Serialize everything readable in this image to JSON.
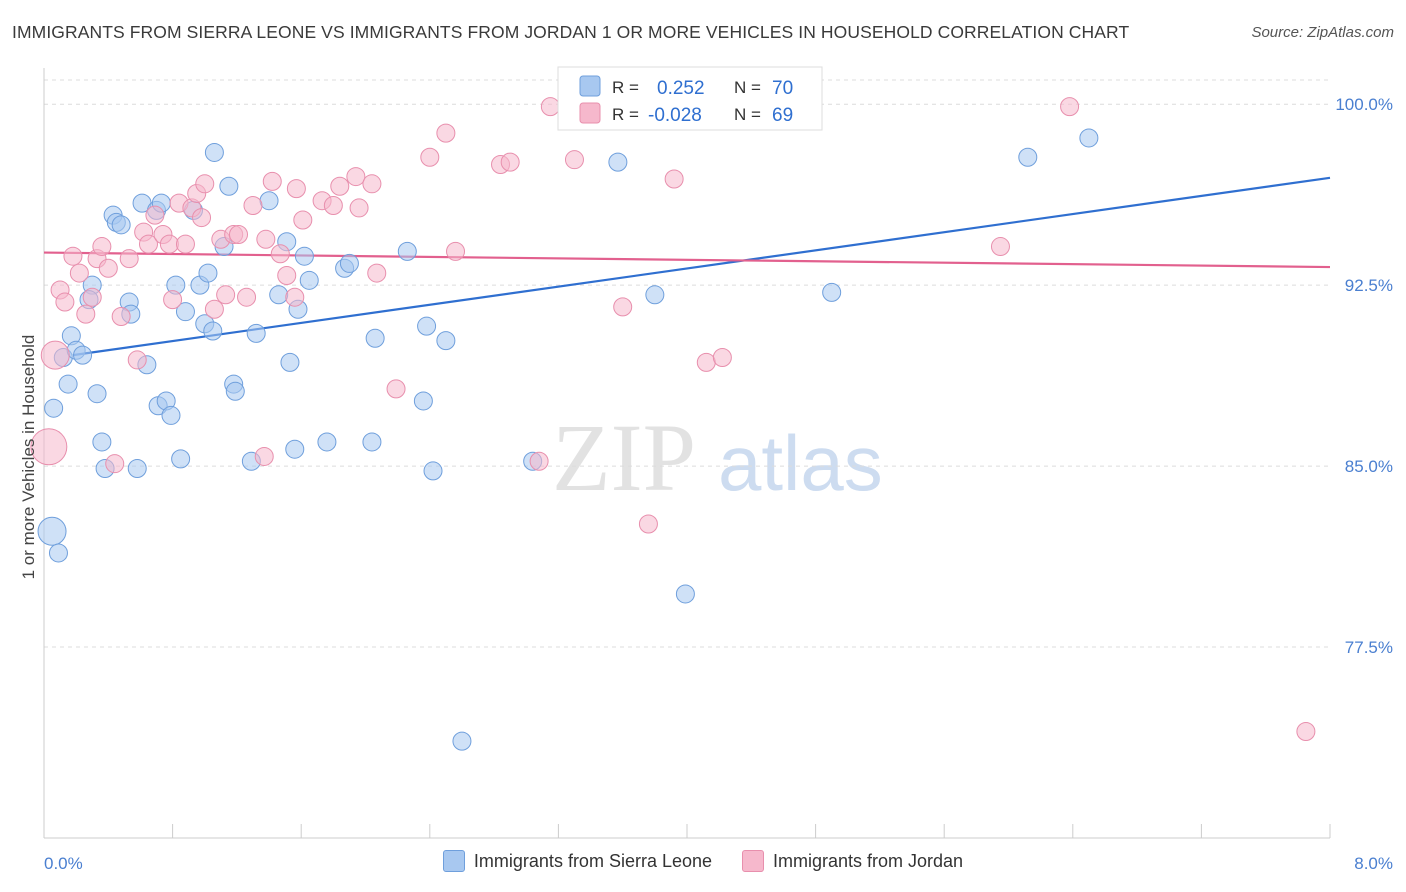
{
  "header": {
    "title": "IMMIGRANTS FROM SIERRA LEONE VS IMMIGRANTS FROM JORDAN 1 OR MORE VEHICLES IN HOUSEHOLD CORRELATION CHART",
    "source": "Source: ZipAtlas.com"
  },
  "watermark": {
    "zip": "ZIP",
    "atlas": "atlas"
  },
  "colors": {
    "blue": "#a8c8f0",
    "blue_stroke": "#6f9fdc",
    "blue_line": "#2f6fd0",
    "pink": "#f6b8cc",
    "pink_stroke": "#e88fad",
    "pink_line": "#e2608e",
    "tick": "#4a7fd0"
  },
  "chart_data": {
    "type": "scatter",
    "title": "IMMIGRANTS FROM SIERRA LEONE VS IMMIGRANTS FROM JORDAN 1 OR MORE VEHICLES IN HOUSEHOLD CORRELATION CHART",
    "xlabel": "",
    "ylabel": "1 or more Vehicles in Household",
    "xlim": [
      0.0,
      8.0
    ],
    "ylim": [
      70.0,
      101.5
    ],
    "x_tick_labels": [
      "0.0%",
      "8.0%"
    ],
    "y_ticks": [
      77.5,
      85.0,
      92.5,
      100.0
    ],
    "y_tick_labels": [
      "77.5%",
      "85.0%",
      "92.5%",
      "100.0%"
    ],
    "grid": true,
    "legend_position": "top-center",
    "stats": [
      {
        "r_label": "R = ",
        "r": " 0.252",
        "n_label": "N = ",
        "n": "70"
      },
      {
        "r_label": "R = ",
        "r": "-0.028",
        "n_label": "N = ",
        "n": "69"
      }
    ],
    "series": [
      {
        "name": "Immigrants from Sierra Leone",
        "color": "#a8c8f0",
        "trend": [
          [
            0.18,
            89.6
          ],
          [
            8.0,
            96.95
          ]
        ],
        "points": [
          [
            0.05,
            82.3,
            2
          ],
          [
            0.09,
            81.4,
            1
          ],
          [
            0.06,
            87.4,
            1
          ],
          [
            0.15,
            88.4,
            1
          ],
          [
            0.17,
            90.4,
            1
          ],
          [
            0.12,
            89.5,
            1
          ],
          [
            0.2,
            89.8,
            1
          ],
          [
            0.24,
            89.6,
            1
          ],
          [
            0.3,
            92.5,
            1
          ],
          [
            0.33,
            88.0,
            1
          ],
          [
            0.28,
            91.9,
            1
          ],
          [
            0.36,
            86.0,
            1
          ],
          [
            0.38,
            84.9,
            1
          ],
          [
            0.53,
            91.8,
            1
          ],
          [
            0.54,
            91.3,
            1
          ],
          [
            0.43,
            95.4,
            1
          ],
          [
            0.45,
            95.1,
            1
          ],
          [
            0.48,
            95.0,
            1
          ],
          [
            0.58,
            84.9,
            1
          ],
          [
            0.61,
            95.9,
            1
          ],
          [
            0.64,
            89.2,
            1
          ],
          [
            0.7,
            95.6,
            1
          ],
          [
            0.73,
            95.9,
            1
          ],
          [
            0.71,
            87.5,
            1
          ],
          [
            0.76,
            87.7,
            1
          ],
          [
            0.79,
            87.1,
            1
          ],
          [
            0.82,
            92.5,
            1
          ],
          [
            0.85,
            85.3,
            1
          ],
          [
            0.88,
            91.4,
            1
          ],
          [
            0.93,
            95.6,
            1
          ],
          [
            0.97,
            92.5,
            1
          ],
          [
            1.0,
            90.9,
            1
          ],
          [
            1.02,
            93.0,
            1
          ],
          [
            1.05,
            90.6,
            1
          ],
          [
            1.06,
            98.0,
            1
          ],
          [
            1.12,
            94.1,
            1
          ],
          [
            1.15,
            96.6,
            1
          ],
          [
            1.18,
            88.4,
            1
          ],
          [
            1.19,
            88.1,
            1
          ],
          [
            1.29,
            85.2,
            1
          ],
          [
            1.32,
            90.5,
            1
          ],
          [
            1.4,
            96.0,
            1
          ],
          [
            1.46,
            92.1,
            1
          ],
          [
            1.51,
            94.3,
            1
          ],
          [
            1.53,
            89.3,
            1
          ],
          [
            1.56,
            85.7,
            1
          ],
          [
            1.58,
            91.5,
            1
          ],
          [
            1.62,
            93.7,
            1
          ],
          [
            1.65,
            92.7,
            1
          ],
          [
            1.76,
            86.0,
            1
          ],
          [
            1.87,
            93.2,
            1
          ],
          [
            1.9,
            93.4,
            1
          ],
          [
            2.04,
            86.0,
            1
          ],
          [
            2.06,
            90.3,
            1
          ],
          [
            2.26,
            93.9,
            1
          ],
          [
            2.36,
            87.7,
            1
          ],
          [
            2.38,
            90.8,
            1
          ],
          [
            2.42,
            84.8,
            1
          ],
          [
            2.6,
            73.6,
            1
          ],
          [
            2.5,
            90.2,
            1
          ],
          [
            3.04,
            85.2,
            1
          ],
          [
            3.45,
            99.9,
            1
          ],
          [
            3.53,
            99.9,
            1
          ],
          [
            3.57,
            97.6,
            1
          ],
          [
            3.8,
            92.1,
            1
          ],
          [
            3.99,
            79.7,
            1
          ],
          [
            4.9,
            92.2,
            1
          ],
          [
            6.12,
            97.8,
            1
          ],
          [
            6.5,
            98.6,
            1
          ],
          [
            3.35,
            99.9,
            1
          ]
        ]
      },
      {
        "name": "Immigrants from Jordan",
        "color": "#f6b8cc",
        "trend": [
          [
            0.0,
            93.85
          ],
          [
            8.0,
            93.25
          ]
        ],
        "points": [
          [
            0.03,
            85.8,
            3
          ],
          [
            0.07,
            89.6,
            2
          ],
          [
            0.1,
            92.3,
            1
          ],
          [
            0.13,
            91.8,
            1
          ],
          [
            0.18,
            93.7,
            1
          ],
          [
            0.22,
            93.0,
            1
          ],
          [
            0.26,
            91.3,
            1
          ],
          [
            0.3,
            92.0,
            1
          ],
          [
            0.33,
            93.6,
            1
          ],
          [
            0.36,
            94.1,
            1
          ],
          [
            0.4,
            93.2,
            1
          ],
          [
            0.44,
            85.1,
            1
          ],
          [
            0.48,
            91.2,
            1
          ],
          [
            0.53,
            93.6,
            1
          ],
          [
            0.58,
            89.4,
            1
          ],
          [
            0.62,
            94.7,
            1
          ],
          [
            0.65,
            94.2,
            1
          ],
          [
            0.69,
            95.4,
            1
          ],
          [
            0.74,
            94.6,
            1
          ],
          [
            0.78,
            94.2,
            1
          ],
          [
            0.8,
            91.9,
            1
          ],
          [
            0.84,
            95.9,
            1
          ],
          [
            0.88,
            94.2,
            1
          ],
          [
            0.92,
            95.7,
            1
          ],
          [
            0.95,
            96.3,
            1
          ],
          [
            0.98,
            95.3,
            1
          ],
          [
            1.0,
            96.7,
            1
          ],
          [
            1.06,
            91.5,
            1
          ],
          [
            1.1,
            94.4,
            1
          ],
          [
            1.13,
            92.1,
            1
          ],
          [
            1.18,
            94.6,
            1
          ],
          [
            1.21,
            94.6,
            1
          ],
          [
            1.26,
            92.0,
            1
          ],
          [
            1.3,
            95.8,
            1
          ],
          [
            1.37,
            85.4,
            1
          ],
          [
            1.38,
            94.4,
            1
          ],
          [
            1.42,
            96.8,
            1
          ],
          [
            1.47,
            93.8,
            1
          ],
          [
            1.51,
            92.9,
            1
          ],
          [
            1.56,
            92.0,
            1
          ],
          [
            1.57,
            96.5,
            1
          ],
          [
            1.61,
            95.2,
            1
          ],
          [
            1.73,
            96.0,
            1
          ],
          [
            1.8,
            95.8,
            1
          ],
          [
            1.84,
            96.6,
            1
          ],
          [
            1.94,
            97.0,
            1
          ],
          [
            1.96,
            95.7,
            1
          ],
          [
            2.04,
            96.7,
            1
          ],
          [
            2.07,
            93.0,
            1
          ],
          [
            2.19,
            88.2,
            1
          ],
          [
            2.4,
            97.8,
            1
          ],
          [
            2.5,
            98.8,
            1
          ],
          [
            2.56,
            93.9,
            1
          ],
          [
            2.84,
            97.5,
            1
          ],
          [
            2.9,
            97.6,
            1
          ],
          [
            3.08,
            85.2,
            1
          ],
          [
            3.15,
            99.9,
            1
          ],
          [
            3.3,
            97.7,
            1
          ],
          [
            3.62,
            99.9,
            1
          ],
          [
            3.6,
            91.6,
            1
          ],
          [
            3.76,
            82.6,
            1
          ],
          [
            3.92,
            96.9,
            1
          ],
          [
            4.12,
            89.3,
            1
          ],
          [
            4.22,
            89.5,
            1
          ],
          [
            4.55,
            99.9,
            1
          ],
          [
            5.95,
            94.1,
            1
          ],
          [
            6.38,
            99.9,
            1
          ],
          [
            7.85,
            74.0,
            1
          ],
          [
            3.58,
            99.9,
            1
          ]
        ]
      }
    ]
  }
}
